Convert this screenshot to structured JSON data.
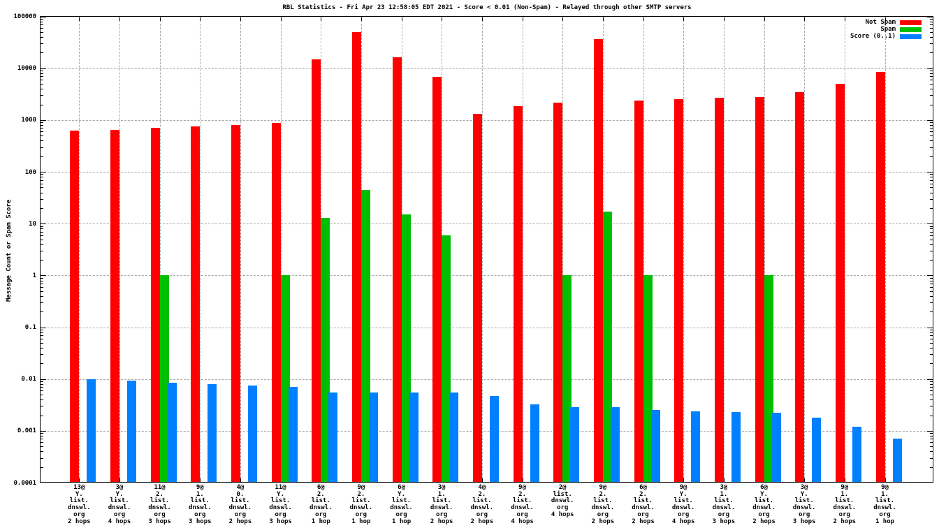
{
  "title": "RBL Statistics - Fri Apr 23 12:58:05 EDT 2021 - Score < 0.01 (Non-Spam) - Relayed through other SMTP servers",
  "y_axis": {
    "label": "Message Count or Spam Score",
    "tick_labels": [
      "100000",
      "10000",
      "1000",
      "100",
      "10",
      "1",
      "0.1",
      "0.01",
      "0.001",
      "0.0001"
    ]
  },
  "legend": {
    "items": [
      {
        "key": "not-spam",
        "label": "Not Spam",
        "color": "#ff0000"
      },
      {
        "key": "spam",
        "label": "Spam",
        "color": "#00bf00"
      },
      {
        "key": "score",
        "label": "Score (0..1)",
        "color": "#0080ff"
      }
    ]
  },
  "chart_data": {
    "type": "bar",
    "yscale": "log",
    "ylim": [
      0.0001,
      100000
    ],
    "grid": true,
    "legend_position": "top-right",
    "title": "RBL Statistics - Fri Apr 23 12:58:05 EDT 2021 - Score < 0.01 (Non-Spam) - Relayed through other SMTP servers",
    "xlabel": "",
    "ylabel": "Message Count or Spam Score",
    "categories": [
      [
        "13@",
        "Y.",
        "list.",
        "dnswl.",
        "org",
        "2 hops"
      ],
      [
        "3@",
        "Y.",
        "list.",
        "dnswl.",
        "org",
        "4 hops"
      ],
      [
        "11@",
        "2.",
        "list.",
        "dnswl.",
        "org",
        "3 hops"
      ],
      [
        "9@",
        "1.",
        "list.",
        "dnswl.",
        "org",
        "3 hops"
      ],
      [
        "4@",
        "0.",
        "list.",
        "dnswl.",
        "org",
        "2 hops"
      ],
      [
        "11@",
        "Y.",
        "list.",
        "dnswl.",
        "org",
        "3 hops"
      ],
      [
        "6@",
        "2.",
        "list.",
        "dnswl.",
        "org",
        "1 hop"
      ],
      [
        "9@",
        "2.",
        "list.",
        "dnswl.",
        "org",
        "1 hop"
      ],
      [
        "6@",
        "Y.",
        "list.",
        "dnswl.",
        "org",
        "1 hop"
      ],
      [
        "3@",
        "1.",
        "list.",
        "dnswl.",
        "org",
        "2 hops"
      ],
      [
        "4@",
        "2.",
        "list.",
        "dnswl.",
        "org",
        "2 hops"
      ],
      [
        "9@",
        "2.",
        "list.",
        "dnswl.",
        "org",
        "4 hops"
      ],
      [
        "2@",
        "list.",
        "dnswl.",
        "org",
        "4 hops"
      ],
      [
        "9@",
        "2.",
        "list.",
        "dnswl.",
        "org",
        "2 hops"
      ],
      [
        "6@",
        "2.",
        "list.",
        "dnswl.",
        "org",
        "2 hops"
      ],
      [
        "9@",
        "Y.",
        "list.",
        "dnswl.",
        "org",
        "4 hops"
      ],
      [
        "3@",
        "1.",
        "list.",
        "dnswl.",
        "org",
        "3 hops"
      ],
      [
        "6@",
        "Y.",
        "list.",
        "dnswl.",
        "org",
        "2 hops"
      ],
      [
        "3@",
        "Y.",
        "list.",
        "dnswl.",
        "org",
        "3 hops"
      ],
      [
        "9@",
        "1.",
        "list.",
        "dnswl.",
        "org",
        "2 hops"
      ],
      [
        "9@",
        "1.",
        "list.",
        "dnswl.",
        "org",
        "1 hop"
      ]
    ],
    "series": [
      {
        "name": "Not Spam",
        "key": "not-spam",
        "color": "#ff0000",
        "values": [
          620,
          650,
          710,
          760,
          810,
          870,
          15000,
          50000,
          16500,
          6800,
          1300,
          1850,
          2150,
          37000,
          2400,
          2500,
          2650,
          2750,
          3400,
          5000,
          8500
        ]
      },
      {
        "name": "Spam",
        "key": "spam",
        "color": "#00bf00",
        "values": [
          null,
          null,
          1,
          null,
          null,
          1,
          13,
          45,
          15,
          6,
          null,
          null,
          1,
          17,
          1,
          null,
          null,
          1,
          null,
          null,
          null
        ]
      },
      {
        "name": "Score (0..1)",
        "key": "score",
        "color": "#0080ff",
        "values": [
          0.0098,
          0.0092,
          0.0085,
          0.008,
          0.0076,
          0.0071,
          0.0055,
          0.0055,
          0.0055,
          0.0055,
          0.0047,
          0.0032,
          0.0029,
          0.0029,
          0.0025,
          0.0024,
          0.0023,
          0.0022,
          0.0018,
          0.0012,
          0.0007
        ]
      }
    ]
  }
}
